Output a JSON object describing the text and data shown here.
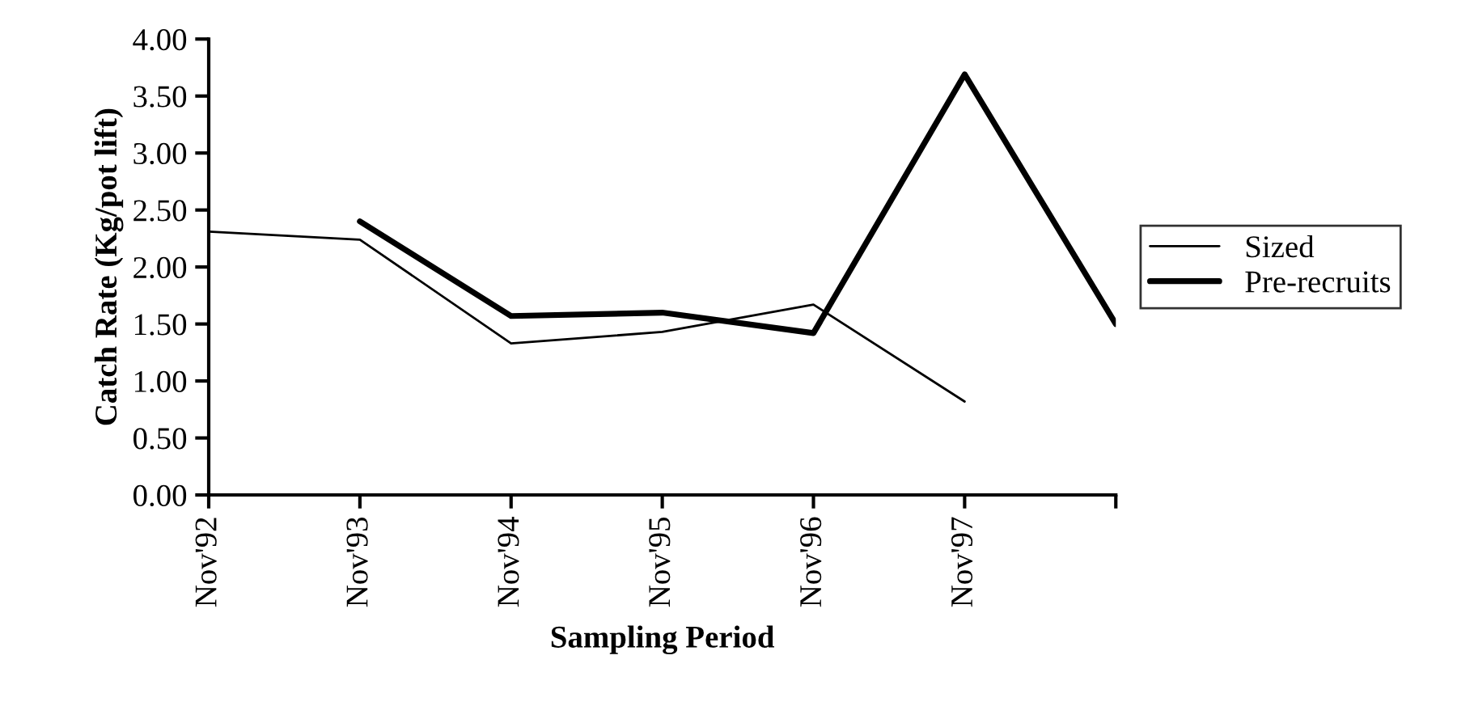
{
  "chart_data": {
    "type": "line",
    "xlabel": "Sampling Period",
    "ylabel": "Catch Rate (Kg/pot lift)",
    "categories": [
      "Nov'92",
      "Nov'93",
      "Nov'94",
      "Nov'95",
      "Nov'96",
      "Nov'97",
      null
    ],
    "series": [
      {
        "name": "Sized",
        "color": "#000000",
        "values": [
          2.31,
          2.24,
          1.33,
          1.43,
          1.67,
          0.82,
          null
        ]
      },
      {
        "name": "Pre-recruits",
        "color": "#000000",
        "values": [
          null,
          2.4,
          1.57,
          1.6,
          1.42,
          3.69,
          1.5
        ]
      }
    ],
    "ylim": [
      0,
      4
    ],
    "yticks": [
      {
        "value": 0,
        "label": "0.00"
      },
      {
        "value": 0.5,
        "label": "0.50"
      },
      {
        "value": 1,
        "label": "1.00"
      },
      {
        "value": 1.5,
        "label": "1.50"
      },
      {
        "value": 2,
        "label": "2.00"
      },
      {
        "value": 2.5,
        "label": "2.50"
      },
      {
        "value": 3,
        "label": "3.00"
      },
      {
        "value": 3.5,
        "label": "3.50"
      },
      {
        "value": 4,
        "label": "4.00"
      }
    ],
    "grid": false,
    "legend": "right",
    "marker": "none",
    "line_style": "solid"
  }
}
